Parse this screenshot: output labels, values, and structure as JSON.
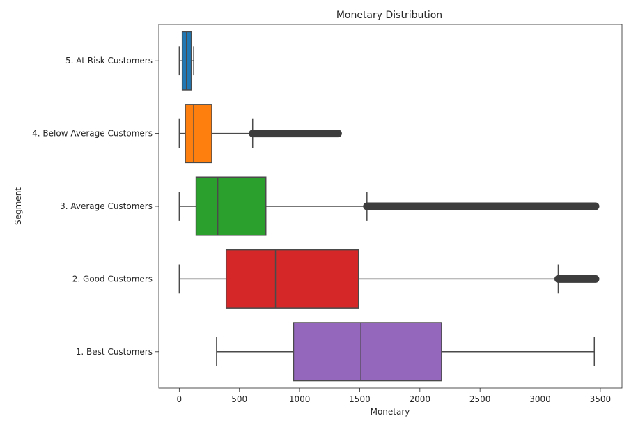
{
  "chart_data": {
    "type": "boxplot",
    "orientation": "horizontal",
    "title": "Monetary Distribution",
    "xlabel": "Monetary",
    "ylabel": "Segment",
    "xlim": [
      -170,
      3680
    ],
    "xticks": [
      0,
      500,
      1000,
      1500,
      2000,
      2500,
      3000,
      3500
    ],
    "grid": false,
    "categories": [
      "5. At Risk Customers",
      "4. Below Average Customers",
      "3. Average Customers",
      "2. Good Customers",
      "1. Best Customers"
    ],
    "boxes": [
      {
        "category": "5. At Risk Customers",
        "color": "#1f77b4",
        "whisker_low": 0,
        "q1": 25,
        "median": 60,
        "q3": 100,
        "whisker_high": 120,
        "outliers_range": null
      },
      {
        "category": "4. Below Average Customers",
        "color": "#ff7f0e",
        "whisker_low": 0,
        "q1": 50,
        "median": 120,
        "q3": 270,
        "whisker_high": 610,
        "outliers_range": [
          610,
          1320
        ]
      },
      {
        "category": "3. Average Customers",
        "color": "#2ca02c",
        "whisker_low": 0,
        "q1": 140,
        "median": 320,
        "q3": 720,
        "whisker_high": 1560,
        "outliers_range": [
          1560,
          3460
        ]
      },
      {
        "category": "2. Good Customers",
        "color": "#d62728",
        "whisker_low": 0,
        "q1": 390,
        "median": 800,
        "q3": 1490,
        "whisker_high": 3150,
        "outliers_range": [
          3150,
          3460
        ]
      },
      {
        "category": "1. Best Customers",
        "color": "#9467bd",
        "whisker_low": 310,
        "q1": 950,
        "median": 1510,
        "q3": 2180,
        "whisker_high": 3450,
        "outliers_range": null
      }
    ]
  }
}
